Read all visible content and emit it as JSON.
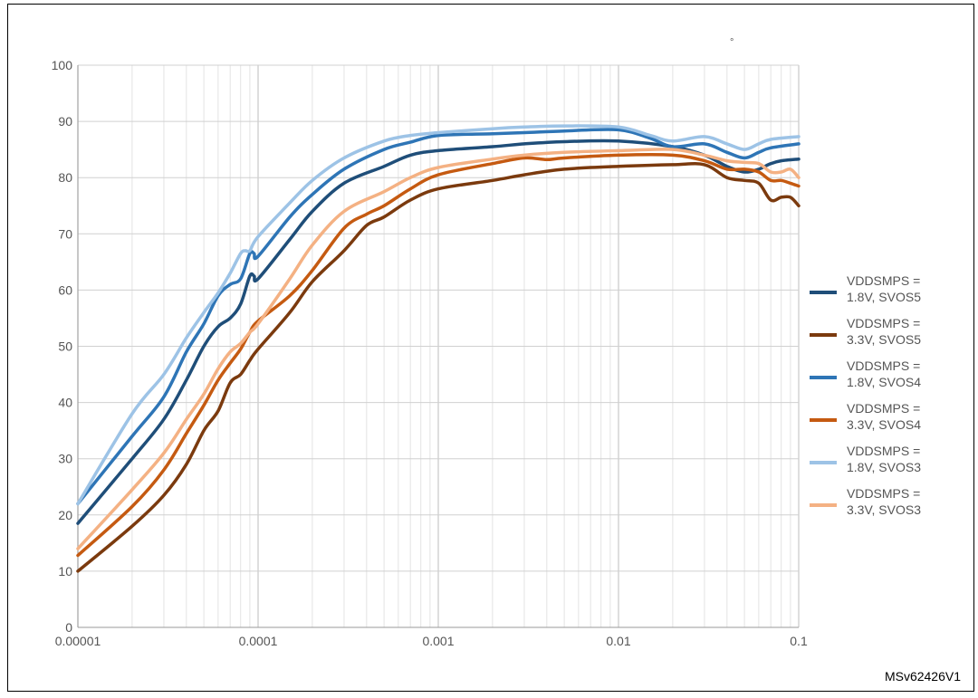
{
  "figure": {
    "credit": "MSv62426V1",
    "marker": "°"
  },
  "chart_data": {
    "type": "line",
    "xscale": "log",
    "xlim": [
      1e-05,
      0.1
    ],
    "ylim": [
      0,
      100
    ],
    "grid": true,
    "legend_position": "right",
    "x_ticks": [
      "0.00001",
      "0.0001",
      "0.001",
      "0.01",
      "0.1"
    ],
    "y_ticks": [
      "0",
      "10",
      "20",
      "30",
      "40",
      "50",
      "60",
      "70",
      "80",
      "90",
      "100"
    ],
    "series": [
      {
        "name": "VDDSMPS = 1.8V, SVOS5",
        "color": "#1f4e79",
        "x": [
          1e-05,
          2e-05,
          3e-05,
          4e-05,
          5e-05,
          6e-05,
          7e-05,
          8e-05,
          9e-05,
          9.5e-05,
          0.0001,
          0.00015,
          0.0002,
          0.0003,
          0.0005,
          0.0007,
          0.001,
          0.002,
          0.003,
          0.005,
          0.01,
          0.02,
          0.03,
          0.04,
          0.05,
          0.06,
          0.07,
          0.08,
          0.1
        ],
        "y": [
          18.5,
          30,
          37,
          44,
          50,
          53.5,
          55,
          57.5,
          62.5,
          62.5,
          62,
          69,
          74,
          79,
          82,
          84,
          84.8,
          85.5,
          86,
          86.4,
          86.5,
          85.5,
          84,
          82,
          81,
          81.5,
          82.5,
          83,
          83.3
        ]
      },
      {
        "name": "VDDSMPS = 3.3V, SVOS5",
        "color": "#7b3a0e",
        "x": [
          1e-05,
          2e-05,
          3e-05,
          4e-05,
          5e-05,
          6e-05,
          7e-05,
          8e-05,
          9e-05,
          0.0001,
          0.00015,
          0.0002,
          0.0003,
          0.0004,
          0.0005,
          0.0007,
          0.001,
          0.002,
          0.003,
          0.005,
          0.01,
          0.02,
          0.03,
          0.04,
          0.05,
          0.06,
          0.07,
          0.08,
          0.09,
          0.1
        ],
        "y": [
          10,
          18,
          23.5,
          29,
          35,
          38.5,
          43.5,
          45,
          47.5,
          49.5,
          56,
          61.5,
          67,
          71.5,
          73,
          76,
          78,
          79.5,
          80.5,
          81.5,
          82,
          82.3,
          82.3,
          80,
          79.5,
          79,
          76,
          76.5,
          76.5,
          75
        ]
      },
      {
        "name": "VDDSMPS = 1.8V, SVOS4",
        "color": "#2e75b6",
        "x": [
          1e-05,
          2e-05,
          3e-05,
          4e-05,
          5e-05,
          6e-05,
          7e-05,
          8e-05,
          9e-05,
          9.5e-05,
          0.0001,
          0.00015,
          0.0002,
          0.0003,
          0.0005,
          0.0007,
          0.001,
          0.002,
          0.003,
          0.005,
          0.01,
          0.015,
          0.02,
          0.03,
          0.04,
          0.05,
          0.06,
          0.07,
          0.1
        ],
        "y": [
          22,
          34,
          41,
          49,
          54,
          59,
          61,
          62,
          66.5,
          66.5,
          66,
          73,
          77,
          81.5,
          85,
          86.3,
          87.5,
          87.8,
          88,
          88.3,
          88.5,
          87,
          85.5,
          86,
          84.5,
          83.5,
          84.5,
          85.3,
          86
        ]
      },
      {
        "name": "VDDSMPS = 3.3V, SVOS4",
        "color": "#c55a11",
        "x": [
          1e-05,
          2e-05,
          3e-05,
          4e-05,
          5e-05,
          6e-05,
          7e-05,
          8e-05,
          9e-05,
          0.0001,
          0.00015,
          0.0002,
          0.0003,
          0.0004,
          0.0005,
          0.0007,
          0.001,
          0.002,
          0.003,
          0.004,
          0.005,
          0.01,
          0.02,
          0.03,
          0.04,
          0.05,
          0.06,
          0.07,
          0.08,
          0.09,
          0.1
        ],
        "y": [
          12.8,
          21.5,
          28,
          34.5,
          39.5,
          44,
          47,
          49.5,
          52.5,
          54.5,
          59,
          63.5,
          71,
          73.5,
          75,
          78,
          80.5,
          82.5,
          83.5,
          83.2,
          83.5,
          84,
          84,
          83,
          81.5,
          81.5,
          81,
          79.5,
          79.5,
          79,
          78.5
        ]
      },
      {
        "name": "VDDSMPS = 1.8V, SVOS3",
        "color": "#9dc3e6",
        "x": [
          1e-05,
          2e-05,
          3e-05,
          4e-05,
          5e-05,
          6e-05,
          7e-05,
          8e-05,
          8.5e-05,
          9e-05,
          0.0001,
          0.00015,
          0.0002,
          0.0003,
          0.0005,
          0.0007,
          0.001,
          0.002,
          0.003,
          0.005,
          0.01,
          0.015,
          0.02,
          0.03,
          0.04,
          0.05,
          0.06,
          0.07,
          0.1
        ],
        "y": [
          22,
          38,
          45,
          51.5,
          56,
          59.5,
          63,
          66.5,
          67,
          67,
          69.5,
          75.5,
          79.5,
          83.5,
          86.5,
          87.5,
          88,
          88.7,
          89,
          89.2,
          89,
          87.5,
          86.5,
          87.3,
          86,
          85,
          86,
          86.8,
          87.3
        ]
      },
      {
        "name": "VDDSMPS = 3.3V, SVOS3",
        "color": "#f4b183",
        "x": [
          1e-05,
          2e-05,
          3e-05,
          4e-05,
          5e-05,
          6e-05,
          7e-05,
          8e-05,
          9e-05,
          0.0001,
          0.00015,
          0.0002,
          0.0003,
          0.0005,
          0.0007,
          0.001,
          0.002,
          0.003,
          0.005,
          0.01,
          0.02,
          0.03,
          0.04,
          0.05,
          0.06,
          0.07,
          0.08,
          0.09,
          0.1
        ],
        "y": [
          14,
          24.5,
          31,
          37,
          41.5,
          46,
          49,
          50.5,
          52.5,
          54,
          62,
          68,
          74,
          77.5,
          80,
          81.8,
          83.3,
          84,
          84.5,
          84.8,
          85,
          84,
          83,
          82.7,
          82.5,
          81,
          81,
          81.5,
          80
        ]
      }
    ]
  }
}
